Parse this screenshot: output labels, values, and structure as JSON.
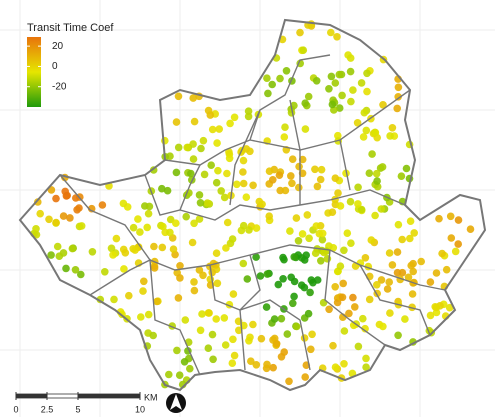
{
  "legend": {
    "title": "Transit Time Coef",
    "ticks": [
      20,
      0,
      -20
    ],
    "limits": [
      -40,
      29
    ],
    "colors": [
      "#1f9a0b",
      "#e6e600",
      "#e8740c"
    ]
  },
  "scale_bar": {
    "ticks": [
      0,
      2.5,
      5,
      10
    ],
    "unit": "KM"
  }
}
